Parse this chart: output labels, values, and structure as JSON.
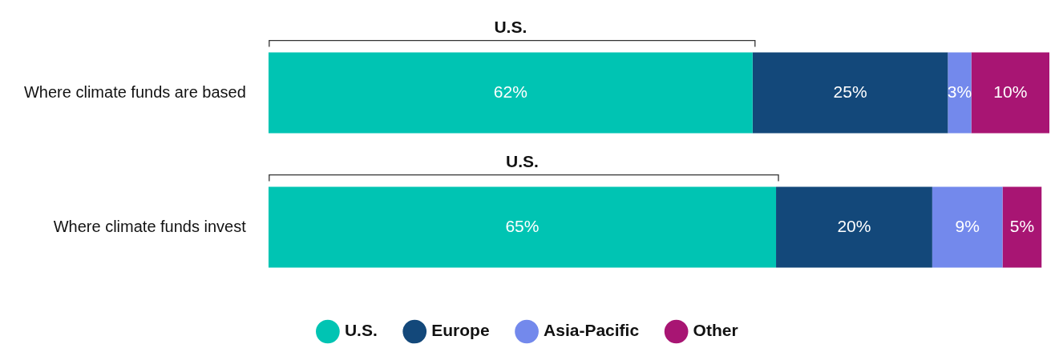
{
  "chart_data": {
    "type": "bar",
    "orientation": "horizontal",
    "stacked": true,
    "data_labels": true,
    "legend": "bottom",
    "tick_labels": "y",
    "grid": false,
    "categories": [
      "Where climate funds are based",
      "Where climate funds invest"
    ],
    "xlim": [
      0,
      100
    ],
    "series": [
      {
        "name": "U.S.",
        "color": "#00c4b3",
        "values": [
          62,
          65
        ],
        "value_labels": [
          "62%",
          "65%"
        ]
      },
      {
        "name": "Europe",
        "color": "#13487a",
        "values": [
          25,
          20
        ],
        "value_labels": [
          "25%",
          "20%"
        ]
      },
      {
        "name": "Asia-Pacific",
        "color": "#7389ec",
        "values": [
          3,
          9
        ],
        "value_labels": [
          "3%",
          "9%"
        ]
      },
      {
        "name": "Other",
        "color": "#a81573",
        "values": [
          10,
          5
        ],
        "value_labels": [
          "10%",
          "5%"
        ]
      }
    ],
    "annotations": [
      "U.S.",
      "U.S."
    ]
  }
}
